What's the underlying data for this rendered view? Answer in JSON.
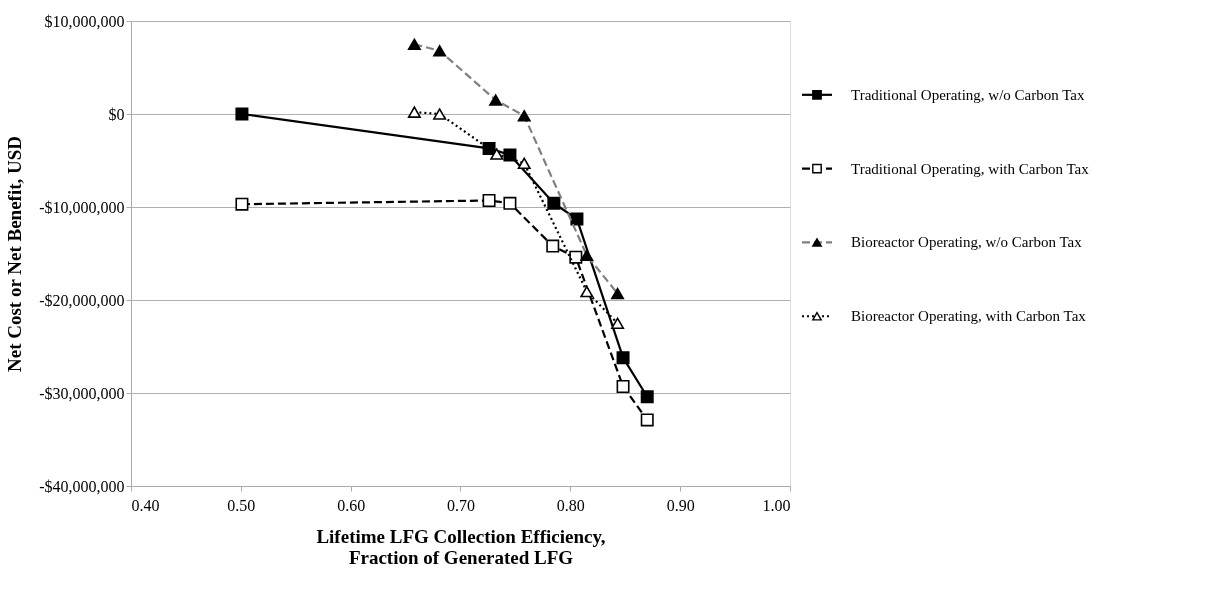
{
  "chart_data": {
    "type": "line",
    "xlabel": "Lifetime LFG Collection Efficiency,\nFraction of Generated LFG",
    "ylabel": "Net Cost  or Net Benefit, USD",
    "xlim": [
      0.4,
      1.0
    ],
    "xticks": [
      {
        "value": 0.4,
        "label": "0.40"
      },
      {
        "value": 0.5,
        "label": "0.50"
      },
      {
        "value": 0.6,
        "label": "0.60"
      },
      {
        "value": 0.7,
        "label": "0.70"
      },
      {
        "value": 0.8,
        "label": "0.80"
      },
      {
        "value": 0.9,
        "label": "0.90"
      },
      {
        "value": 1.0,
        "label": "1.00"
      }
    ],
    "ylim": [
      -40000000,
      10000000
    ],
    "yticks": [
      {
        "value": -40000000,
        "label": "-$40,000,000"
      },
      {
        "value": -30000000,
        "label": "-$30,000,000"
      },
      {
        "value": -20000000,
        "label": "-$20,000,000"
      },
      {
        "value": -10000000,
        "label": "-$10,000,000"
      },
      {
        "value": 0,
        "label": "$0"
      },
      {
        "value": 10000000,
        "label": "$10,000,000"
      }
    ],
    "grid": "y",
    "legend": "right",
    "series": [
      {
        "name": "Traditional Operating, w/o Carbon Tax",
        "color": "#000000",
        "marker": "square",
        "line_style": "solid",
        "x": [
          0.501,
          0.726,
          0.745,
          0.785,
          0.806,
          0.848,
          0.87
        ],
        "values": [
          0,
          -3700000,
          -4400000,
          -9600000,
          -11300000,
          -26200000,
          -30400000
        ]
      },
      {
        "name": "Traditional Operating, with Carbon Tax",
        "color": "#000000",
        "marker": "square-open",
        "line_style": "dashed",
        "x": [
          0.501,
          0.726,
          0.745,
          0.784,
          0.805,
          0.848,
          0.87
        ],
        "values": [
          -9700000,
          -9300000,
          -9600000,
          -14200000,
          -15400000,
          -29300000,
          -32900000
        ]
      },
      {
        "name": "Bioreactor Operating, w/o Carbon Tax",
        "color": "#808080",
        "marker": "triangle",
        "line_style": "dashed",
        "x": [
          0.658,
          0.681,
          0.732,
          0.758,
          0.815,
          0.843
        ],
        "values": [
          7500000,
          6800000,
          1500000,
          -200000,
          -15200000,
          -19300000
        ]
      },
      {
        "name": "Bioreactor Operating, with Carbon Tax",
        "color": "#000000",
        "marker": "triangle-open",
        "line_style": "dotted",
        "x": [
          0.658,
          0.681,
          0.733,
          0.758,
          0.815,
          0.843
        ],
        "values": [
          200000,
          0,
          -4300000,
          -5300000,
          -19100000,
          -22500000
        ]
      }
    ]
  }
}
